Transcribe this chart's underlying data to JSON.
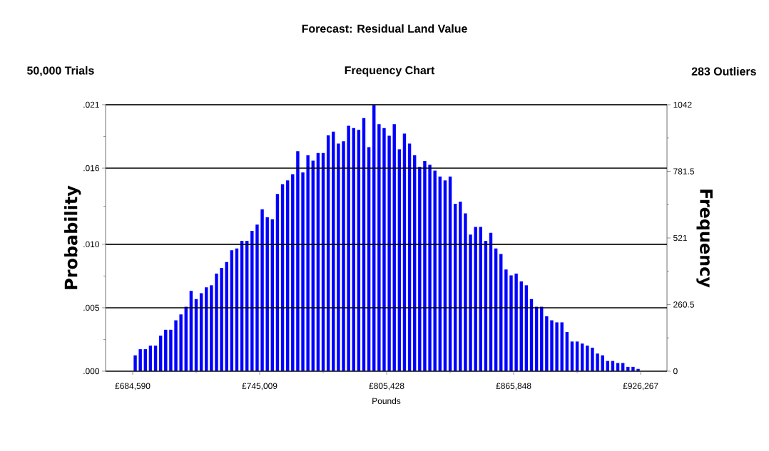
{
  "chart_data": {
    "type": "histogram",
    "title": "Forecast: Residual Land Value",
    "subtitle": "Frequency Chart",
    "annotations": [
      "50,000 Trials",
      "283 Outliers"
    ],
    "xlabel": "Pounds",
    "ylabel": "Probability",
    "y2label": "Frequency",
    "grid": "y",
    "bins": [
      684590,
      687007,
      689424,
      691840,
      694257,
      696674,
      699091,
      701507,
      703924,
      706341,
      708758,
      711174,
      713591,
      716008,
      718425,
      720842,
      723258,
      725675,
      728092,
      730509,
      732925,
      735342,
      737759,
      740176,
      742592,
      745009,
      747426,
      749843,
      752260,
      754676,
      757093,
      759510,
      761927,
      764343,
      766760,
      769177,
      771594,
      774010,
      776427,
      778844,
      781261,
      783678,
      786094,
      788511,
      790928,
      793345,
      795761,
      798178,
      800595,
      803012,
      805428,
      807845,
      810262,
      812679,
      815096,
      817512,
      819929,
      822346,
      824763,
      827179,
      829596,
      832013,
      834430,
      836847,
      839263,
      841680,
      844097,
      846514,
      848930,
      851347,
      853764,
      856181,
      858597,
      861014,
      863431,
      865848,
      868265,
      870681,
      873098,
      875515,
      877932,
      880348,
      882765,
      885182,
      887599,
      890015,
      892432,
      894849,
      897266,
      899683,
      902099,
      904516,
      906933,
      909350,
      911766,
      914183,
      916600,
      919017,
      921433,
      923850,
      926267
    ],
    "series": [
      {
        "color": "#0000ff",
        "axis": "y2",
        "values": [
          62,
          86,
          86,
          100,
          100,
          139,
          162,
          162,
          199,
          222,
          252,
          314,
          282,
          305,
          328,
          336,
          382,
          404,
          427,
          473,
          480,
          510,
          510,
          549,
          573,
          633,
          602,
          594,
          693,
          731,
          746,
          770,
          860,
          777,
          844,
          823,
          853,
          853,
          922,
          937,
          890,
          899,
          960,
          951,
          944,
          990,
          876,
          1040,
          966,
          951,
          921,
          966,
          868,
          929,
          890,
          844,
          799,
          822,
          807,
          784,
          761,
          746,
          761,
          655,
          663,
          617,
          534,
          564,
          564,
          510,
          541,
          480,
          458,
          398,
          375,
          382,
          351,
          336,
          282,
          252,
          252,
          215,
          199,
          191,
          191,
          153,
          116,
          116,
          108,
          100,
          92,
          69,
          62,
          40,
          40,
          32,
          32,
          17,
          17,
          9
        ]
      }
    ],
    "xlim": [
      671700,
      938800
    ],
    "xticks": [
      {
        "value": 684590,
        "label": "£684,590"
      },
      {
        "value": 714800,
        "label": null
      },
      {
        "value": 745009,
        "label": "£745,009"
      },
      {
        "value": 775219,
        "label": null
      },
      {
        "value": 805428,
        "label": "£805,428"
      },
      {
        "value": 835638,
        "label": null
      },
      {
        "value": 865848,
        "label": "£865,848"
      },
      {
        "value": 896057,
        "label": null
      },
      {
        "value": 926267,
        "label": "£926,267"
      }
    ],
    "ylim": [
      0,
      0.021
    ],
    "yticks": [
      {
        "value": 0,
        "label": ".000"
      },
      {
        "value": 0.0025,
        "label": null
      },
      {
        "value": 0.005,
        "label": ".005"
      },
      {
        "value": 0.0075,
        "label": null
      },
      {
        "value": 0.01,
        "label": ".010"
      },
      {
        "value": 0.013,
        "label": null
      },
      {
        "value": 0.016,
        "label": ".016"
      },
      {
        "value": 0.0185,
        "label": null
      },
      {
        "value": 0.021,
        "label": ".021"
      }
    ],
    "y2lim": [
      0,
      1042
    ],
    "y2ticks": [
      0,
      {
        "value": 130.25,
        "label": null
      },
      260.5,
      {
        "value": 390.75,
        "label": null
      },
      521,
      {
        "value": 651.25,
        "label": null
      },
      781.5,
      {
        "value": 911.75,
        "label": null
      },
      1042
    ]
  }
}
